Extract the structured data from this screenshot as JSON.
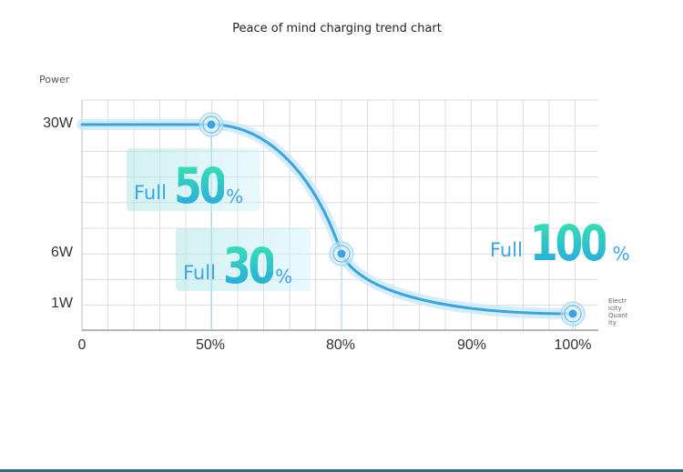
{
  "chart_data": {
    "type": "line",
    "title": "Peace of mind charging trend chart",
    "ylabel": "Power",
    "xlabel": "Electricity Quantity",
    "x_ticks": [
      "0",
      "50%",
      "80%",
      "90%",
      "100%"
    ],
    "y_ticks": [
      "30W",
      "6W",
      "1W"
    ],
    "series": [
      {
        "points": [
          [
            0,
            30
          ],
          [
            50,
            30
          ],
          [
            80,
            6
          ],
          [
            100,
            1
          ]
        ]
      }
    ],
    "markers": [
      [
        50,
        30
      ],
      [
        80,
        6
      ],
      [
        100,
        1
      ]
    ],
    "grid": true,
    "line_color": "#3aa4e0",
    "accent_gradient": [
      "#37e2b0",
      "#2aa6e4"
    ]
  },
  "badges": [
    {
      "full": "Full",
      "value": "50",
      "unit": "%"
    },
    {
      "full": "Full",
      "value": "30",
      "unit": "%"
    },
    {
      "full": "Full",
      "value": "100",
      "unit": "%"
    }
  ]
}
